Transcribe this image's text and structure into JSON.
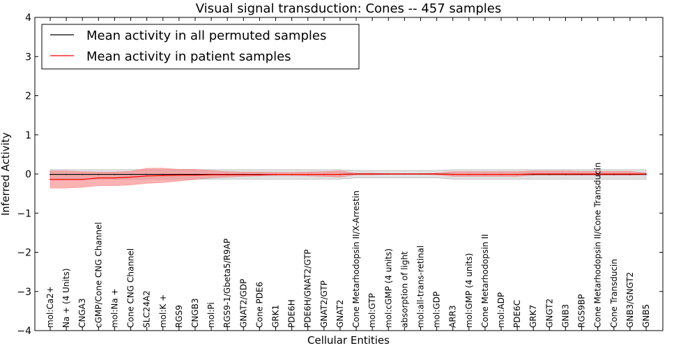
{
  "chart_data": {
    "type": "line",
    "title": "Visual signal transduction: Cones -- 457 samples",
    "xlabel": "Cellular Entities",
    "ylabel": "Inferred Activity",
    "ylim": [
      -4,
      4
    ],
    "yticks": [
      -4,
      -3,
      -2,
      -1,
      0,
      1,
      2,
      3,
      4
    ],
    "legend_position": "top-left",
    "categories": [
      "mol:Ca2+",
      "Na + (4 Units)",
      "CNGA3",
      "cGMP/Cone CNG Channel",
      "mol:Na +",
      "Cone CNG Channel",
      "SLC24A2",
      "mol:K +",
      "RGS9",
      "CNGB3",
      "mol:Pi",
      "RGS9-1/Gbeta5/R9AP",
      "GNAT2/GDP",
      "Cone PDE6",
      "GRK1",
      "PDE6H",
      "PDE6H/GNAT2/GTP",
      "GNAT2/GTP",
      "GNAT2",
      "Cone Metarhodopsin II/X-Arrestin",
      "mol:GTP",
      "mol:cGMP (4 units)",
      "absorption of light",
      "mol:all-trans-retinal",
      "mol:GDP",
      "ARR3",
      "mol:GMP (4 units)",
      "Cone Metarhodopsin II",
      "mol:ADP",
      "PDE6C",
      "GRK7",
      "GNGT2",
      "GNB3",
      "RGS9BP",
      "Cone Metarhodopsin II/Cone Transducin",
      "Cone Transducin",
      "GNB3/GNGT2",
      "GNB5"
    ],
    "series": [
      {
        "name": "Mean activity in all permuted samples",
        "color": "#000000",
        "band_color": "#c8c8c8",
        "values": [
          -0.01,
          -0.01,
          -0.01,
          -0.01,
          -0.01,
          -0.01,
          -0.01,
          -0.01,
          -0.01,
          -0.01,
          -0.01,
          -0.01,
          -0.01,
          -0.01,
          -0.01,
          -0.01,
          -0.01,
          -0.01,
          -0.01,
          0.0,
          0.0,
          0.0,
          0.0,
          0.0,
          0.0,
          -0.01,
          -0.01,
          -0.01,
          -0.01,
          -0.01,
          -0.01,
          -0.01,
          -0.01,
          -0.01,
          -0.01,
          -0.01,
          -0.01,
          -0.01
        ],
        "lower": [
          -0.13,
          -0.13,
          -0.13,
          -0.13,
          -0.13,
          -0.13,
          -0.13,
          -0.13,
          -0.13,
          -0.13,
          -0.13,
          -0.13,
          -0.13,
          -0.13,
          -0.13,
          -0.13,
          -0.13,
          -0.13,
          -0.13,
          -0.1,
          -0.1,
          -0.1,
          -0.1,
          -0.1,
          -0.1,
          -0.13,
          -0.13,
          -0.13,
          -0.13,
          -0.13,
          -0.13,
          -0.13,
          -0.13,
          -0.13,
          -0.13,
          -0.13,
          -0.13,
          -0.13
        ],
        "upper": [
          0.11,
          0.11,
          0.11,
          0.11,
          0.11,
          0.11,
          0.11,
          0.11,
          0.11,
          0.11,
          0.11,
          0.11,
          0.11,
          0.11,
          0.11,
          0.11,
          0.11,
          0.11,
          0.11,
          0.09,
          0.09,
          0.09,
          0.09,
          0.09,
          0.09,
          0.11,
          0.11,
          0.11,
          0.11,
          0.11,
          0.11,
          0.11,
          0.11,
          0.11,
          0.11,
          0.11,
          0.11,
          0.11
        ]
      },
      {
        "name": "Mean activity in patient samples",
        "color": "#ff0000",
        "band_color": "#f77f7f",
        "values": [
          -0.14,
          -0.14,
          -0.14,
          -0.1,
          -0.1,
          -0.08,
          -0.05,
          -0.04,
          -0.03,
          -0.03,
          -0.02,
          -0.02,
          -0.02,
          -0.02,
          -0.01,
          -0.01,
          -0.01,
          -0.01,
          -0.01,
          0.0,
          0.0,
          0.0,
          0.0,
          0.0,
          0.0,
          -0.01,
          -0.01,
          -0.01,
          -0.01,
          -0.01,
          0.0,
          0.0,
          0.0,
          0.0,
          0.0,
          0.0,
          0.0,
          0.0
        ],
        "lower": [
          -0.36,
          -0.36,
          -0.34,
          -0.3,
          -0.3,
          -0.28,
          -0.24,
          -0.22,
          -0.18,
          -0.14,
          -0.1,
          -0.08,
          -0.06,
          -0.05,
          -0.04,
          -0.04,
          -0.05,
          -0.06,
          -0.08,
          -0.02,
          -0.02,
          -0.01,
          -0.01,
          -0.01,
          -0.02,
          -0.06,
          -0.06,
          -0.06,
          -0.06,
          -0.06,
          -0.03,
          -0.03,
          -0.03,
          -0.03,
          -0.03,
          -0.03,
          -0.03,
          -0.02
        ],
        "upper": [
          0.08,
          0.08,
          0.06,
          0.05,
          0.05,
          0.07,
          0.15,
          0.15,
          0.12,
          0.12,
          0.09,
          0.06,
          0.05,
          0.05,
          0.04,
          0.04,
          0.05,
          0.06,
          0.08,
          0.02,
          0.02,
          0.01,
          0.01,
          0.01,
          0.02,
          0.06,
          0.06,
          0.06,
          0.06,
          0.06,
          0.08,
          0.08,
          0.08,
          0.07,
          0.07,
          0.07,
          0.07,
          0.03
        ]
      }
    ]
  }
}
